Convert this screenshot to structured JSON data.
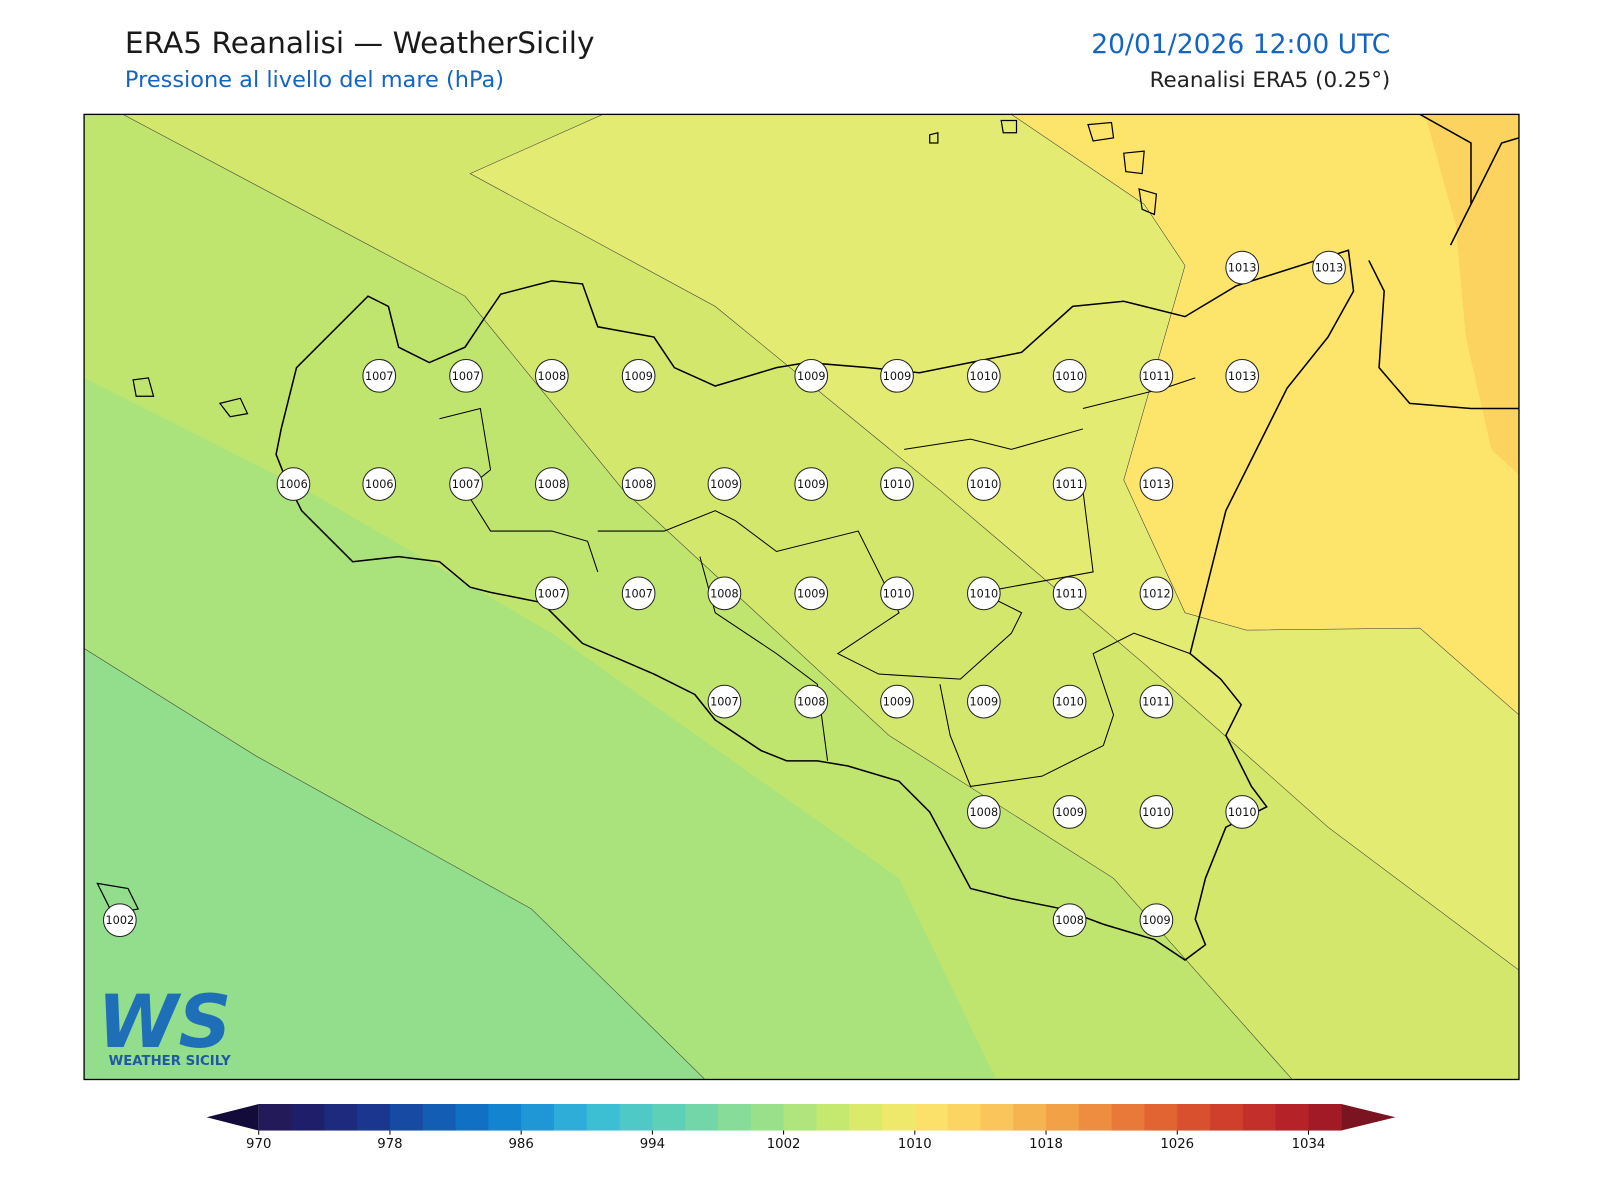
{
  "header": {
    "title": "ERA5 Reanalisi — WeatherSicily",
    "subtitle": "Pressione al livello del mare (hPa)",
    "datetime": "20/01/2026 12:00 UTC",
    "source": "Reanalisi ERA5 (0.25°)"
  },
  "stations": {
    "values": [
      1013,
      1013,
      1007,
      1007,
      1008,
      1009,
      1009,
      1009,
      1010,
      1010,
      1011,
      1013,
      1006,
      1006,
      1007,
      1008,
      1008,
      1009,
      1009,
      1010,
      1010,
      1011,
      1013,
      1007,
      1007,
      1008,
      1009,
      1010,
      1010,
      1011,
      1012,
      1007,
      1008,
      1009,
      1009,
      1010,
      1011,
      1008,
      1009,
      1010,
      1010,
      1002,
      1008,
      1009
    ]
  },
  "colorbar": {
    "lim": [
      970,
      1036
    ],
    "ticks": [
      970,
      978,
      986,
      994,
      1002,
      1010,
      1018,
      1026,
      1034
    ],
    "colors": [
      "#231a5a",
      "#1f1e6b",
      "#1e2a7d",
      "#1b368f",
      "#174aa3",
      "#135db5",
      "#0f70c4",
      "#1384cf",
      "#1f97d7",
      "#2eadd8",
      "#3cbfd2",
      "#4ec9c6",
      "#5fd0b8",
      "#72d6a8",
      "#86dc98",
      "#9ae08a",
      "#b0e47c",
      "#c5e86f",
      "#dcea6c",
      "#efe96b",
      "#fbe16a",
      "#fcd462",
      "#fac55a",
      "#f6b450",
      "#f2a146",
      "#ee8d3f",
      "#e97938",
      "#e26432",
      "#d9502e",
      "#cf3f2b",
      "#c32f2a",
      "#b52329",
      "#a31a27"
    ]
  },
  "logo": {
    "mark": "WS",
    "text": "WEATHER SICILY"
  }
}
